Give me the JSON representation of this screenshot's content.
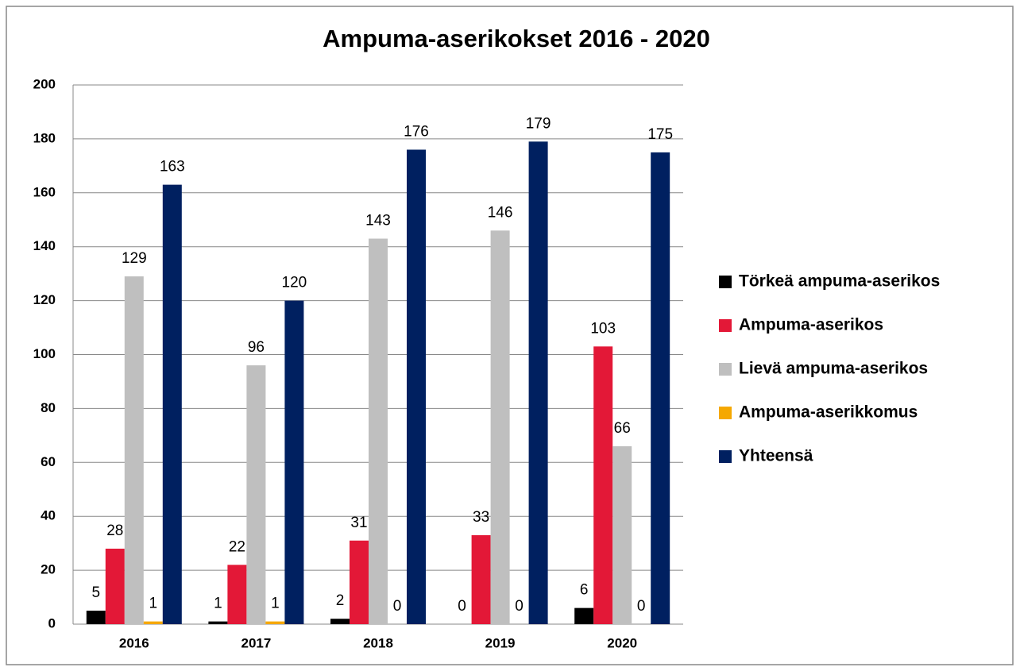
{
  "chart_data": {
    "type": "bar",
    "title": "Ampuma-aserikokset 2016 - 2020",
    "categories": [
      "2016",
      "2017",
      "2018",
      "2019",
      "2020"
    ],
    "series": [
      {
        "name": "Törkeä ampuma-aserikos",
        "color": "#000000",
        "values": [
          5,
          1,
          2,
          0,
          6
        ]
      },
      {
        "name": "Ampuma-aserikos",
        "color": "#e31837",
        "values": [
          28,
          22,
          31,
          33,
          103
        ]
      },
      {
        "name": "Lievä ampuma-aserikos",
        "color": "#bfbfbf",
        "values": [
          129,
          96,
          143,
          146,
          66
        ]
      },
      {
        "name": "Ampuma-aserikkomus",
        "color": "#f5a800",
        "values": [
          1,
          1,
          0,
          0,
          0
        ]
      },
      {
        "name": "Yhteensä",
        "color": "#002060",
        "values": [
          163,
          120,
          176,
          179,
          175
        ]
      }
    ],
    "ylim": [
      0,
      200
    ],
    "yticks": [
      0,
      20,
      40,
      60,
      80,
      100,
      120,
      140,
      160,
      180,
      200
    ],
    "grid": true,
    "legend": "right"
  }
}
